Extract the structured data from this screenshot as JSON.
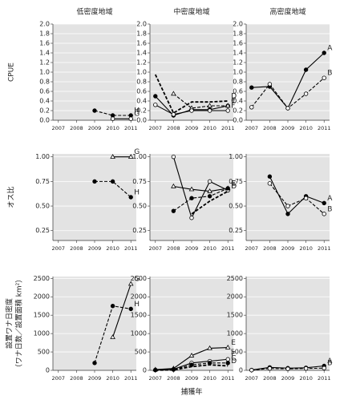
{
  "column_titles": [
    "低密度地域",
    "中密度地域",
    "高密度地域"
  ],
  "row_labels": [
    [
      "CPUE"
    ],
    [
      "オス比"
    ],
    [
      "設置ワナ日密度",
      "（ワナ日数／設置面積 km²）"
    ]
  ],
  "x_label": "捕獲年",
  "chart_data": [
    {
      "type": "line",
      "x": [
        2007,
        2008,
        2009,
        2010,
        2011
      ],
      "xlim": [
        2006.7,
        2011.3
      ],
      "xticks": [
        2007,
        2008,
        2009,
        2010,
        2011
      ],
      "ylim": [
        0,
        2
      ],
      "yticks": [
        {
          "value": 0,
          "label": "0.0"
        },
        {
          "value": 0.2,
          "label": "0.2"
        },
        {
          "value": 0.4,
          "label": "0.4"
        },
        {
          "value": 0.6,
          "label": "0.6"
        },
        {
          "value": 0.8,
          "label": "0.8"
        },
        {
          "value": 1,
          "label": "1.0"
        },
        {
          "value": 1.2,
          "label": "1.2"
        },
        {
          "value": 1.4,
          "label": "1.4"
        },
        {
          "value": 1.6,
          "label": "1.6"
        },
        {
          "value": 1.8,
          "label": "1.8"
        },
        {
          "value": 2,
          "label": "2.0"
        }
      ],
      "grid": true,
      "series": [
        {
          "name": "H",
          "color": "#000",
          "dash": true,
          "marker": "filled",
          "values": [
            null,
            null,
            0.2,
            0.1,
            0.1
          ]
        },
        {
          "name": "G",
          "color": "#000",
          "dash": false,
          "marker": "open",
          "values": [
            null,
            null,
            null,
            0.03,
            0.03
          ]
        }
      ]
    },
    {
      "type": "line",
      "x": [
        2007,
        2008,
        2009,
        2010,
        2011
      ],
      "xlim": [
        2006.7,
        2011.3
      ],
      "xticks": [
        2007,
        2008,
        2009,
        2010,
        2011
      ],
      "ylim": [
        0,
        2
      ],
      "yticks": [
        {
          "value": 0,
          "label": "0.0"
        },
        {
          "value": 0.2,
          "label": "0.2"
        },
        {
          "value": 0.4,
          "label": "0.4"
        },
        {
          "value": 0.6,
          "label": "0.6"
        },
        {
          "value": 0.8,
          "label": "0.8"
        },
        {
          "value": 1,
          "label": "1.0"
        },
        {
          "value": 1.2,
          "label": "1.2"
        },
        {
          "value": 1.4,
          "label": "1.4"
        },
        {
          "value": 1.6,
          "label": "1.6"
        },
        {
          "value": 1.8,
          "label": "1.8"
        },
        {
          "value": 2,
          "label": "2.0"
        }
      ],
      "grid": true,
      "series": [
        {
          "name": "D",
          "color": "#000",
          "dash": true,
          "marker": "none",
          "values": [
            0.95,
            0.15,
            0.38,
            0.38,
            0.4
          ]
        },
        {
          "name": "C",
          "color": "#000",
          "dash": false,
          "marker": "filled",
          "values": [
            0.5,
            0.1,
            0.22,
            0.22,
            0.3
          ]
        },
        {
          "name": "E",
          "color": "#000",
          "dash": true,
          "marker": "triangle",
          "values": [
            null,
            0.55,
            0.25,
            0.3,
            0.3
          ]
        },
        {
          "name": "F",
          "color": "#000",
          "dash": false,
          "marker": "open",
          "values": [
            0.32,
            0.12,
            0.2,
            0.2,
            0.2
          ]
        }
      ]
    },
    {
      "type": "line",
      "x": [
        2007,
        2008,
        2009,
        2010,
        2011
      ],
      "xlim": [
        2006.7,
        2011.3
      ],
      "xticks": [
        2007,
        2008,
        2009,
        2010,
        2011
      ],
      "ylim": [
        0,
        2
      ],
      "yticks": [
        {
          "value": 0,
          "label": "0.0"
        },
        {
          "value": 0.2,
          "label": "0.2"
        },
        {
          "value": 0.4,
          "label": "0.4"
        },
        {
          "value": 0.6,
          "label": "0.6"
        },
        {
          "value": 0.8,
          "label": "0.8"
        },
        {
          "value": 1,
          "label": "1.0"
        },
        {
          "value": 1.2,
          "label": "1.2"
        },
        {
          "value": 1.4,
          "label": "1.4"
        },
        {
          "value": 1.6,
          "label": "1.6"
        },
        {
          "value": 1.8,
          "label": "1.8"
        },
        {
          "value": 2,
          "label": "2.0"
        }
      ],
      "grid": true,
      "series": [
        {
          "name": "A",
          "color": "#000",
          "dash": false,
          "marker": "filled",
          "values": [
            0.68,
            0.7,
            0.25,
            1.05,
            1.4
          ]
        },
        {
          "name": "B",
          "color": "#000",
          "dash": true,
          "marker": "open",
          "values": [
            0.27,
            0.75,
            0.25,
            0.55,
            0.88
          ]
        }
      ]
    },
    {
      "type": "line",
      "x": [
        2007,
        2008,
        2009,
        2010,
        2011
      ],
      "xlim": [
        2006.7,
        2011.3
      ],
      "xticks": [
        2007,
        2008,
        2009,
        2010,
        2011
      ],
      "ylim": [
        0.15,
        1.03
      ],
      "yticks": [
        {
          "value": 0.25,
          "label": "0.25"
        },
        {
          "value": 0.5,
          "label": "0.50"
        },
        {
          "value": 0.75,
          "label": "0.75"
        },
        {
          "value": 1,
          "label": "1.00"
        }
      ],
      "grid": true,
      "series": [
        {
          "name": "H",
          "color": "#000",
          "dash": true,
          "marker": "filled",
          "values": [
            null,
            null,
            0.75,
            0.75,
            0.59
          ]
        },
        {
          "name": "G",
          "color": "#000",
          "dash": false,
          "marker": "triangle",
          "values": [
            null,
            null,
            null,
            1,
            1
          ]
        }
      ]
    },
    {
      "type": "line",
      "x": [
        2007,
        2008,
        2009,
        2010,
        2011
      ],
      "xlim": [
        2006.7,
        2011.3
      ],
      "xticks": [
        2007,
        2008,
        2009,
        2010,
        2011
      ],
      "ylim": [
        0.15,
        1.03
      ],
      "yticks": [
        {
          "value": 0.25,
          "label": "0.25"
        },
        {
          "value": 0.5,
          "label": "0.50"
        },
        {
          "value": 0.75,
          "label": "0.75"
        },
        {
          "value": 1,
          "label": "1.00"
        }
      ],
      "grid": true,
      "series": [
        {
          "name": "F",
          "color": "#000",
          "dash": false,
          "marker": "open",
          "values": [
            null,
            1,
            0.38,
            0.75,
            0.66
          ]
        },
        {
          "name": "E",
          "color": "#000",
          "dash": false,
          "marker": "triangle",
          "values": [
            null,
            0.7,
            0.67,
            0.65,
            0.68
          ]
        },
        {
          "name": "D",
          "color": "#000",
          "dash": true,
          "marker": "none",
          "values": [
            null,
            null,
            0.42,
            0.55,
            0.65
          ]
        },
        {
          "name": "C",
          "color": "#000",
          "dash": true,
          "marker": "filled",
          "values": [
            null,
            0.45,
            0.58,
            0.6,
            0.68
          ]
        }
      ]
    },
    {
      "type": "line",
      "x": [
        2007,
        2008,
        2009,
        2010,
        2011
      ],
      "xlim": [
        2006.7,
        2011.3
      ],
      "xticks": [
        2007,
        2008,
        2009,
        2010,
        2011
      ],
      "ylim": [
        0.15,
        1.03
      ],
      "yticks": [
        {
          "value": 0.25,
          "label": "0.25"
        },
        {
          "value": 0.5,
          "label": "0.50"
        },
        {
          "value": 0.75,
          "label": "0.75"
        },
        {
          "value": 1,
          "label": "1.00"
        }
      ],
      "grid": true,
      "series": [
        {
          "name": "A",
          "color": "#000",
          "dash": false,
          "marker": "filled",
          "values": [
            null,
            0.8,
            0.42,
            0.6,
            0.53
          ]
        },
        {
          "name": "B",
          "color": "#000",
          "dash": true,
          "marker": "open",
          "values": [
            null,
            0.73,
            0.5,
            0.58,
            0.42
          ]
        }
      ]
    },
    {
      "type": "line",
      "x": [
        2007,
        2008,
        2009,
        2010,
        2011
      ],
      "xlim": [
        2006.7,
        2011.3
      ],
      "xticks": [
        2007,
        2008,
        2009,
        2010,
        2011
      ],
      "ylim": [
        0,
        2550
      ],
      "yticks": [
        0,
        500,
        1000,
        1500,
        2000,
        2500
      ],
      "grid": true,
      "series": [
        {
          "name": "H",
          "color": "#000",
          "dash": true,
          "marker": "filled",
          "values": [
            null,
            null,
            200,
            1750,
            1670
          ]
        },
        {
          "name": "G",
          "color": "#000",
          "dash": false,
          "marker": "triangle",
          "values": [
            null,
            null,
            null,
            900,
            2350
          ]
        }
      ]
    },
    {
      "type": "line",
      "x": [
        2007,
        2008,
        2009,
        2010,
        2011
      ],
      "xlim": [
        2006.7,
        2011.3
      ],
      "xticks": [
        2007,
        2008,
        2009,
        2010,
        2011
      ],
      "ylim": [
        0,
        2550
      ],
      "yticks": [
        0,
        500,
        1000,
        1500,
        2000,
        2500
      ],
      "grid": true,
      "series": [
        {
          "name": "E",
          "color": "#000",
          "dash": false,
          "marker": "triangle",
          "values": [
            20,
            50,
            400,
            600,
            620
          ]
        },
        {
          "name": "F",
          "color": "#000",
          "dash": false,
          "marker": "open",
          "values": [
            10,
            30,
            200,
            250,
            300
          ]
        },
        {
          "name": "C",
          "color": "#000",
          "dash": true,
          "marker": "filled",
          "values": [
            10,
            20,
            150,
            200,
            200
          ]
        },
        {
          "name": "D",
          "color": "#000",
          "dash": true,
          "marker": "none",
          "values": [
            5,
            10,
            100,
            150,
            120
          ]
        }
      ]
    },
    {
      "type": "line",
      "x": [
        2007,
        2008,
        2009,
        2010,
        2011
      ],
      "xlim": [
        2006.7,
        2011.3
      ],
      "xticks": [
        2007,
        2008,
        2009,
        2010,
        2011
      ],
      "ylim": [
        0,
        2550
      ],
      "yticks": [
        0,
        500,
        1000,
        1500,
        2000,
        2500
      ],
      "grid": true,
      "series": [
        {
          "name": "A",
          "color": "#000",
          "dash": false,
          "marker": "filled",
          "values": [
            10,
            80,
            60,
            70,
            120
          ]
        },
        {
          "name": "B",
          "color": "#000",
          "dash": true,
          "marker": "open",
          "values": [
            5,
            50,
            40,
            50,
            60
          ]
        }
      ]
    }
  ]
}
